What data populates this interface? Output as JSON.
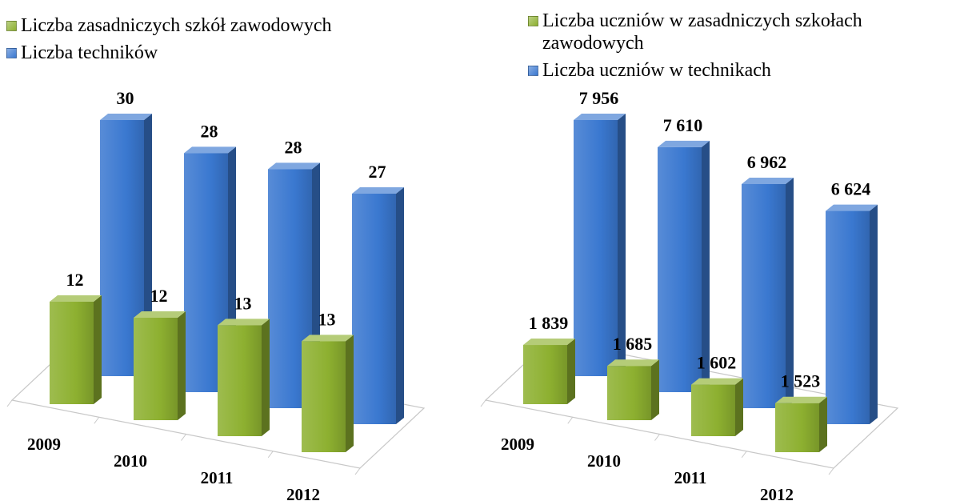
{
  "chart_data": [
    {
      "type": "bar3d",
      "categories": [
        "2009",
        "2010",
        "2011",
        "2012"
      ],
      "series": [
        {
          "name": "Liczba zasadniczych szkół zawodowych",
          "color": "#8db030",
          "values": [
            12,
            12,
            13,
            13
          ]
        },
        {
          "name": "Liczba techników",
          "color": "#3a78d0",
          "values": [
            30,
            28,
            28,
            27
          ]
        }
      ]
    },
    {
      "type": "bar3d",
      "categories": [
        "2009",
        "2010",
        "2011",
        "2012"
      ],
      "series": [
        {
          "name": "Liczba uczniów w zasadniczych szkołach zawodowych",
          "color": "#8db030",
          "values": [
            1839,
            1685,
            1602,
            1523
          ],
          "value_labels": [
            "1 839",
            "1 685",
            "1 602",
            "1 523"
          ]
        },
        {
          "name": "Liczba uczniów w technikach",
          "color": "#3a78d0",
          "values": [
            7956,
            7610,
            6962,
            6624
          ],
          "value_labels": [
            "7 956",
            "7 610",
            "6 962",
            "6 624"
          ]
        }
      ]
    }
  ]
}
